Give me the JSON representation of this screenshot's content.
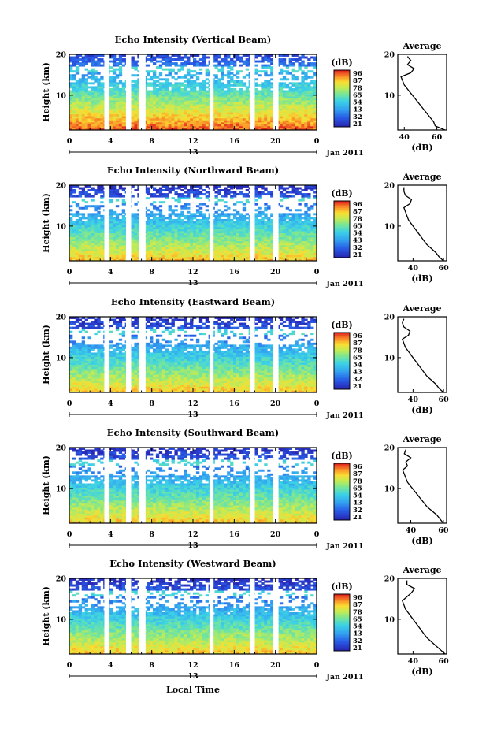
{
  "figure": {
    "xlabel": "Local Time",
    "date_label": "Jan 2011",
    "day_label": "13",
    "average_title": "Average",
    "unit": "(dB)",
    "ylabel": "Height (km)"
  },
  "chart_data": [
    {
      "type": "heatmap",
      "title": "Echo Intensity (Vertical Beam)",
      "xlabel": "Local Time",
      "ylabel": "Height (km)",
      "x_ticks": [
        "0",
        "4",
        "8",
        "12",
        "16",
        "20",
        "0"
      ],
      "y_ticks": [
        "20",
        "10"
      ],
      "xlim": [
        0,
        24
      ],
      "ylim": [
        1.5,
        20
      ],
      "colorbar": {
        "label": "(dB)",
        "ticks": [
          "96",
          "87",
          "78",
          "65",
          "54",
          "43",
          "32",
          "21"
        ]
      },
      "gaps_hours": [
        [
          3.4,
          3.9
        ],
        [
          5.5,
          6.0
        ],
        [
          6.8,
          7.4
        ],
        [
          13.6,
          14.0
        ],
        [
          17.5,
          18.0
        ],
        [
          19.8,
          20.3
        ]
      ],
      "profile": {
        "title": "Average",
        "xlabel": "(dB)",
        "x_ticks": [
          "40",
          "60"
        ],
        "xlim": [
          36,
          66
        ],
        "y_ticks": [
          "20",
          "10"
        ],
        "heights_km": [
          1.5,
          2.5,
          3.5,
          4.5,
          5.5,
          6.5,
          7.5,
          8.5,
          9.5,
          10.5,
          11.5,
          12.5,
          13.5,
          14.5,
          15.5,
          16.5,
          17.5,
          18.5,
          19.5
        ],
        "values_db": [
          65,
          59,
          58,
          56,
          54,
          52,
          50,
          48,
          46,
          44,
          42,
          40,
          39,
          38,
          44,
          46,
          42,
          44,
          42
        ]
      }
    },
    {
      "type": "heatmap",
      "title": "Echo Intensity (Northward Beam)",
      "xlabel": "Local Time",
      "ylabel": "Height (km)",
      "x_ticks": [
        "0",
        "4",
        "8",
        "12",
        "16",
        "20",
        "0"
      ],
      "y_ticks": [
        "20",
        "10"
      ],
      "xlim": [
        0,
        24
      ],
      "ylim": [
        1.5,
        20
      ],
      "colorbar": {
        "label": "(dB)",
        "ticks": [
          "96",
          "87",
          "78",
          "65",
          "54",
          "43",
          "32",
          "21"
        ]
      },
      "gaps_hours": [
        [
          3.4,
          3.9
        ],
        [
          5.5,
          6.0
        ],
        [
          6.8,
          7.4
        ],
        [
          13.6,
          14.0
        ],
        [
          17.5,
          18.0
        ],
        [
          19.8,
          20.3
        ]
      ],
      "profile": {
        "title": "Average",
        "xlabel": "(dB)",
        "x_ticks": [
          "40",
          "60"
        ],
        "xlim": [
          30,
          62
        ],
        "y_ticks": [
          "20",
          "10"
        ],
        "heights_km": [
          1.5,
          2.5,
          3.5,
          4.5,
          5.5,
          6.5,
          7.5,
          8.5,
          9.5,
          10.5,
          11.5,
          12.5,
          13.5,
          14.5,
          15.5,
          16.5,
          17.5,
          18.5,
          19.5
        ],
        "values_db": [
          60,
          57,
          55,
          52,
          49,
          47,
          45,
          43,
          41,
          39,
          37,
          36,
          35,
          34,
          38,
          39,
          35,
          34,
          34
        ]
      }
    },
    {
      "type": "heatmap",
      "title": "Echo Intensity (Eastward Beam)",
      "xlabel": "Local Time",
      "ylabel": "Height (km)",
      "x_ticks": [
        "0",
        "4",
        "8",
        "12",
        "16",
        "20",
        "0"
      ],
      "y_ticks": [
        "20",
        "10"
      ],
      "xlim": [
        0,
        24
      ],
      "ylim": [
        1.5,
        20
      ],
      "colorbar": {
        "label": "(dB)",
        "ticks": [
          "96",
          "87",
          "78",
          "65",
          "54",
          "43",
          "32",
          "21"
        ]
      },
      "gaps_hours": [
        [
          3.4,
          3.9
        ],
        [
          5.5,
          6.0
        ],
        [
          6.8,
          7.4
        ],
        [
          13.6,
          14.0
        ],
        [
          17.5,
          18.0
        ],
        [
          19.8,
          20.3
        ]
      ],
      "profile": {
        "title": "Average",
        "xlabel": "(dB)",
        "x_ticks": [
          "40",
          "60"
        ],
        "xlim": [
          30,
          62
        ],
        "y_ticks": [
          "20",
          "10"
        ],
        "heights_km": [
          1.5,
          2.5,
          3.5,
          4.5,
          5.5,
          6.5,
          7.5,
          8.5,
          9.5,
          10.5,
          11.5,
          12.5,
          13.5,
          14.5,
          15.5,
          16.5,
          17.5,
          18.5,
          19.5
        ],
        "values_db": [
          60,
          57,
          55,
          52,
          49,
          47,
          45,
          43,
          41,
          39,
          37,
          35,
          34,
          33,
          37,
          38,
          34,
          33,
          34
        ]
      }
    },
    {
      "type": "heatmap",
      "title": "Echo Intensity (Southward Beam)",
      "xlabel": "Local Time",
      "ylabel": "Height (km)",
      "x_ticks": [
        "0",
        "4",
        "8",
        "12",
        "16",
        "20",
        "0"
      ],
      "y_ticks": [
        "20",
        "10"
      ],
      "xlim": [
        0,
        24
      ],
      "ylim": [
        1.5,
        20
      ],
      "colorbar": {
        "label": "(dB)",
        "ticks": [
          "96",
          "87",
          "78",
          "65",
          "54",
          "43",
          "32",
          "21"
        ]
      },
      "gaps_hours": [
        [
          3.4,
          3.9
        ],
        [
          5.5,
          6.0
        ],
        [
          6.8,
          7.4
        ],
        [
          13.6,
          14.0
        ],
        [
          17.5,
          18.0
        ],
        [
          19.8,
          20.3
        ]
      ],
      "profile": {
        "title": "Average",
        "xlabel": "(dB)",
        "x_ticks": [
          "40",
          "60"
        ],
        "xlim": [
          32,
          62
        ],
        "y_ticks": [
          "20",
          "10"
        ],
        "heights_km": [
          1.5,
          2.5,
          3.5,
          4.5,
          5.5,
          6.5,
          7.5,
          8.5,
          9.5,
          10.5,
          11.5,
          12.5,
          13.5,
          14.5,
          15.5,
          16.5,
          17.5,
          18.5,
          19.5
        ],
        "values_db": [
          60,
          58,
          56,
          53,
          50,
          48,
          46,
          44,
          42,
          40,
          38,
          37,
          36,
          35,
          38,
          37,
          40,
          36,
          37
        ]
      }
    },
    {
      "type": "heatmap",
      "title": "Echo Intensity (Westward Beam)",
      "xlabel": "Local Time",
      "ylabel": "Height (km)",
      "x_ticks": [
        "0",
        "4",
        "8",
        "12",
        "16",
        "20",
        "0"
      ],
      "y_ticks": [
        "20",
        "10"
      ],
      "xlim": [
        0,
        24
      ],
      "ylim": [
        1.5,
        20
      ],
      "colorbar": {
        "label": "(dB)",
        "ticks": [
          "96",
          "87",
          "78",
          "65",
          "54",
          "43",
          "32",
          "21"
        ]
      },
      "gaps_hours": [
        [
          3.4,
          3.9
        ],
        [
          5.5,
          6.0
        ],
        [
          6.8,
          7.4
        ],
        [
          13.6,
          14.0
        ],
        [
          17.5,
          18.0
        ],
        [
          19.8,
          20.3
        ]
      ],
      "profile": {
        "title": "Average",
        "xlabel": "(dB)",
        "x_ticks": [
          "40",
          "60"
        ],
        "xlim": [
          30,
          62
        ],
        "y_ticks": [
          "20",
          "10"
        ],
        "heights_km": [
          1.5,
          2.5,
          3.5,
          4.5,
          5.5,
          6.5,
          7.5,
          8.5,
          9.5,
          10.5,
          11.5,
          12.5,
          13.5,
          14.5,
          15.5,
          16.5,
          17.5,
          18.5,
          19.5
        ],
        "values_db": [
          61,
          58,
          55,
          52,
          49,
          47,
          45,
          43,
          41,
          39,
          37,
          35,
          34,
          33,
          36,
          39,
          41,
          36,
          36
        ]
      }
    }
  ]
}
